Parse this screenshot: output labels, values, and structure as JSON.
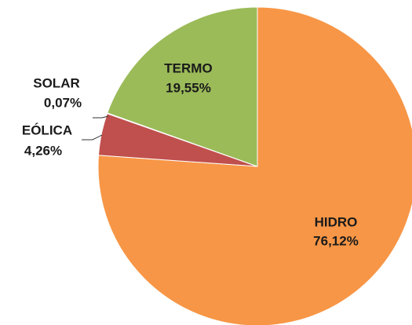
{
  "chart_data": {
    "type": "pie",
    "categories": [
      "HIDRO",
      "EÓLICA",
      "SOLAR",
      "TERMO"
    ],
    "values": [
      76.12,
      4.26,
      0.07,
      19.55
    ],
    "value_labels": [
      "76,12%",
      "4,26%",
      "0,07%",
      "19,55%"
    ],
    "colors": [
      "#f79646",
      "#c0504d",
      "#4f81bd",
      "#9bbb59"
    ]
  }
}
